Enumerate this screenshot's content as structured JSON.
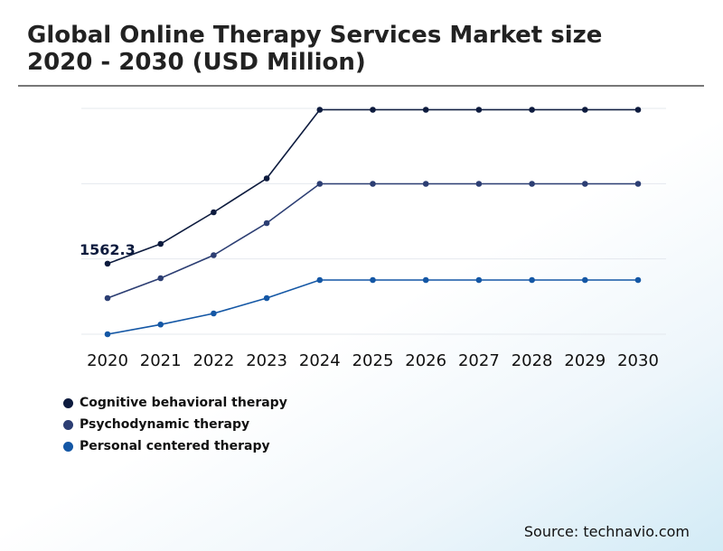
{
  "title": "Global Online Therapy Services Market size 2020 - 2030 (USD Million)",
  "source": "Source: technavio.com",
  "chart_data": {
    "type": "line",
    "title": "Global Online Therapy Services Market size 2020 - 2030 (USD Million)",
    "x": [
      "2020",
      "2021",
      "2022",
      "2023",
      "2024",
      "2025",
      "2026",
      "2027",
      "2028",
      "2029",
      "2030"
    ],
    "ylim": [
      0,
      5000
    ],
    "y_axis_labels_shown": false,
    "grid": true,
    "legend_position": "bottom-left",
    "annotations": [
      {
        "text": "1562.3",
        "series": 0,
        "x": "2020"
      }
    ],
    "series": [
      {
        "name": "Cognitive behavioral therapy",
        "color": "#0d1b3e",
        "values": [
          1562.3,
          2000,
          2700,
          3450,
          4970,
          4970,
          4970,
          4970,
          4970,
          4970,
          4970
        ]
      },
      {
        "name": "Psychodynamic therapy",
        "color": "#2c3e73",
        "values": [
          800,
          1240,
          1750,
          2460,
          3330,
          3330,
          3330,
          3330,
          3330,
          3330,
          3330
        ]
      },
      {
        "name": "Personal centered therapy",
        "color": "#1457a5",
        "values": [
          0,
          215,
          460,
          800,
          1200,
          1200,
          1200,
          1200,
          1200,
          1200,
          1200
        ]
      }
    ]
  }
}
